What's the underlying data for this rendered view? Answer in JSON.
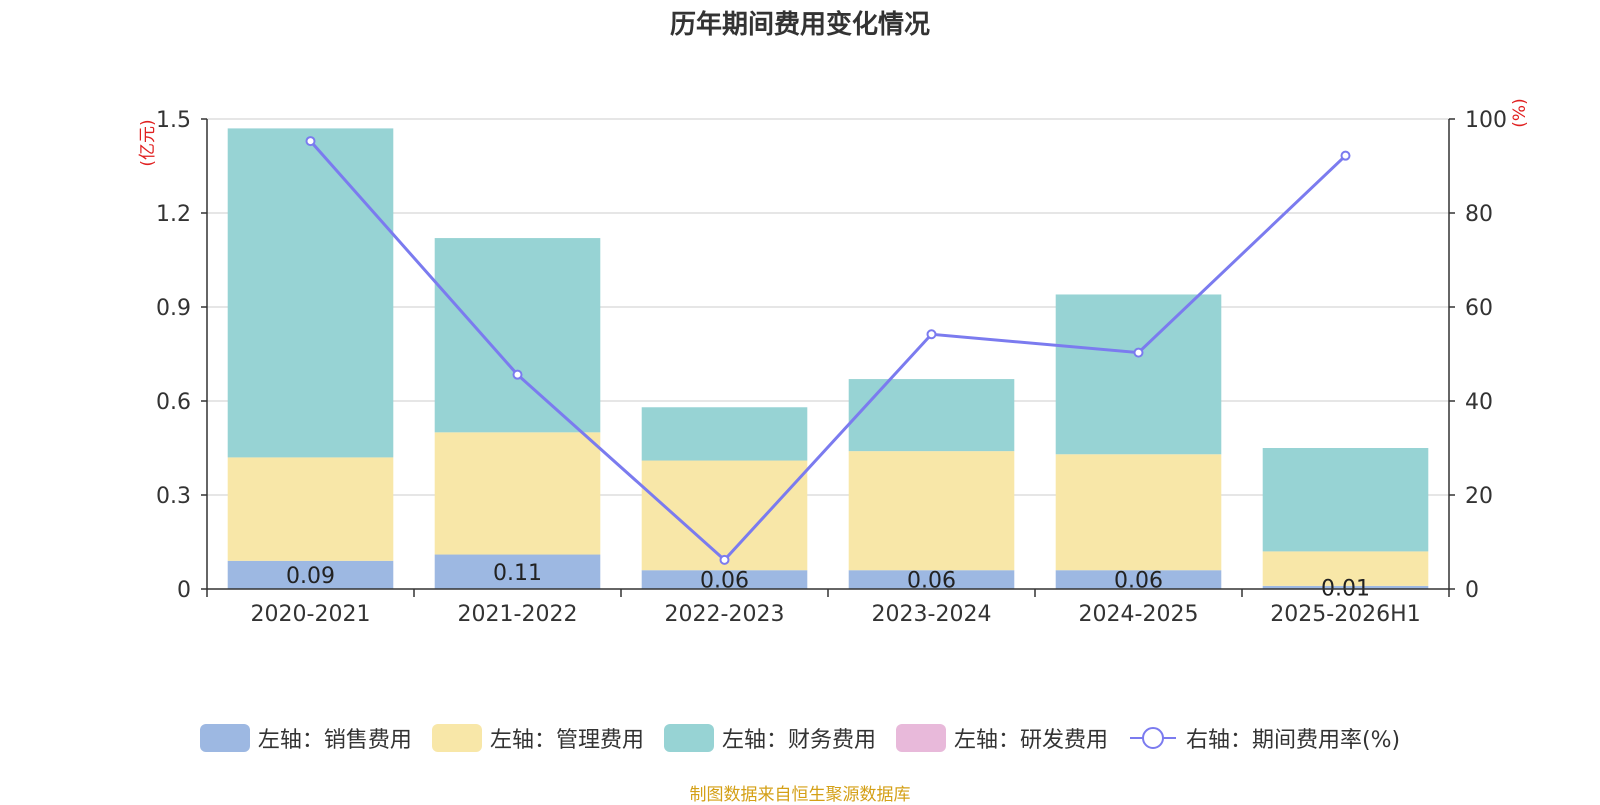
{
  "chart_data": {
    "type": "bar",
    "title": "历年期间费用变化情况",
    "categories": [
      "2020-2021",
      "2021-2022",
      "2022-2023",
      "2023-2024",
      "2024-2025",
      "2025-2026H1"
    ],
    "left_axis": {
      "label": "(亿元)",
      "ylim": [
        0,
        1.5
      ],
      "ticks": [
        0,
        0.3,
        0.6,
        0.9,
        1.2,
        1.5
      ],
      "tick_labels": [
        "0",
        "0.3",
        "0.6",
        "0.9",
        "1.2",
        "1.5"
      ]
    },
    "right_axis": {
      "label": "(%)",
      "ylim": [
        0,
        100
      ],
      "ticks": [
        0,
        20,
        40,
        60,
        80,
        100
      ],
      "tick_labels": [
        "0",
        "20",
        "40",
        "60",
        "80",
        "100"
      ]
    },
    "series": [
      {
        "name": "左轴：销售费用",
        "type": "bar",
        "axis": "left",
        "color": "#9db8e2",
        "values": [
          0.09,
          0.11,
          0.06,
          0.06,
          0.06,
          0.01
        ],
        "labels": [
          "0.09",
          "0.11",
          "0.06",
          "0.06",
          "0.06",
          "0.01"
        ]
      },
      {
        "name": "左轴：管理费用",
        "type": "bar",
        "axis": "left",
        "color": "#f8e7a8",
        "values": [
          0.33,
          0.39,
          0.35,
          0.38,
          0.37,
          0.11
        ]
      },
      {
        "name": "左轴：财务费用",
        "type": "bar",
        "axis": "left",
        "color": "#97d3d4",
        "values": [
          1.05,
          0.62,
          0.17,
          0.23,
          0.51,
          0.33
        ]
      },
      {
        "name": "左轴：研发费用",
        "type": "bar",
        "axis": "left",
        "color": "#e8b9da",
        "values": [
          0,
          0,
          0,
          0,
          0,
          0
        ]
      },
      {
        "name": "右轴：期间费用率(%)",
        "type": "line",
        "axis": "right",
        "color": "#7b7bef",
        "values": [
          95.3,
          45.6,
          6.2,
          54.2,
          50.3,
          92.2
        ]
      }
    ],
    "grid": true,
    "legend_position": "bottom"
  },
  "source": "制图数据来自恒生聚源数据库"
}
